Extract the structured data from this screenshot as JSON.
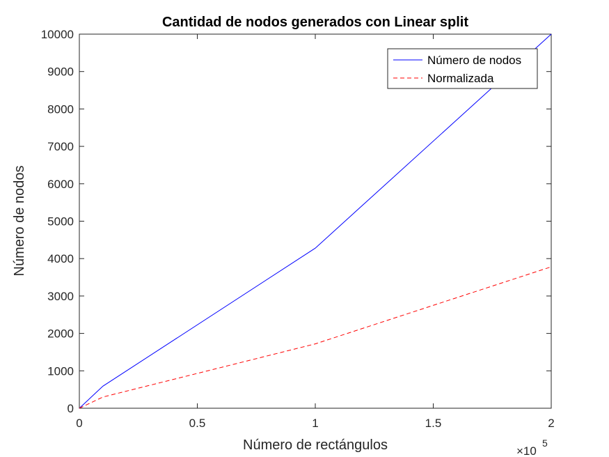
{
  "chart_data": {
    "type": "line",
    "title": "Cantidad de nodos generados con Linear split",
    "xlabel": "Número de rectángulos",
    "ylabel": "Número de nodos",
    "xlim": [
      0,
      200000
    ],
    "ylim": [
      0,
      10000
    ],
    "x_ticks": [
      0,
      50000,
      100000,
      150000,
      200000
    ],
    "x_tick_labels": [
      "0",
      "0.5",
      "1",
      "1.5",
      "2"
    ],
    "x_exponent_label": "×10",
    "x_exponent_power": "5",
    "y_ticks": [
      0,
      1000,
      2000,
      3000,
      4000,
      5000,
      6000,
      7000,
      8000,
      9000,
      10000
    ],
    "y_tick_labels": [
      "0",
      "1000",
      "2000",
      "3000",
      "4000",
      "5000",
      "6000",
      "7000",
      "8000",
      "9000",
      "10000"
    ],
    "grid": false,
    "legend_position": "top-right",
    "series": [
      {
        "name": "Número de nodos",
        "color": "#0000ff",
        "style": "solid",
        "x": [
          0,
          10000,
          100000,
          200000
        ],
        "y": [
          0,
          590,
          4280,
          10000
        ]
      },
      {
        "name": "Normalizada",
        "color": "#ff0000",
        "style": "dashed",
        "x": [
          0,
          10000,
          100000,
          200000
        ],
        "y": [
          0,
          300,
          1720,
          3780
        ]
      }
    ]
  }
}
